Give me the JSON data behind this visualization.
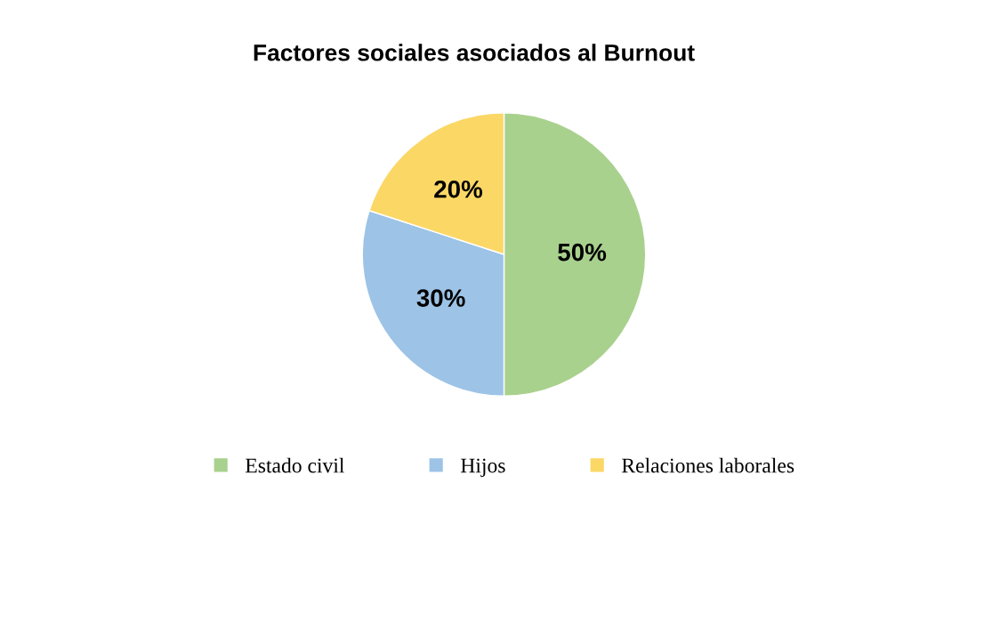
{
  "chart_data": {
    "type": "pie",
    "title": "Factores sociales asociados al Burnout",
    "categories": [
      "Estado civil",
      "Hijos",
      "Relaciones laborales"
    ],
    "values": [
      50,
      30,
      20
    ],
    "colors": [
      "#a9d18e",
      "#9dc3e6",
      "#fbd765"
    ],
    "value_labels": [
      "50%",
      "30%",
      "20%"
    ],
    "legend": "bottom"
  }
}
